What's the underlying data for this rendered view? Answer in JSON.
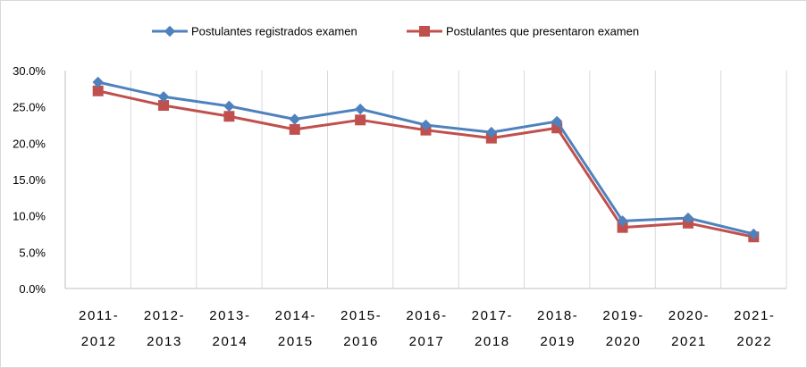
{
  "chart_data": {
    "type": "line",
    "title": "",
    "xlabel": "",
    "ylabel": "",
    "categories": [
      [
        "2011-",
        "2012"
      ],
      [
        "2012-",
        "2013"
      ],
      [
        "2013-",
        "2014"
      ],
      [
        "2014-",
        "2015"
      ],
      [
        "2015-",
        "2016"
      ],
      [
        "2016-",
        "2017"
      ],
      [
        "2017-",
        "2018"
      ],
      [
        "2018-",
        "2019"
      ],
      [
        "2019-",
        "2020"
      ],
      [
        "2020-",
        "2021"
      ],
      [
        "2021-",
        "2022"
      ]
    ],
    "series": [
      {
        "name": "Postulantes registrados examen",
        "color": "#4F81BD",
        "marker": "diamond",
        "values": [
          28.4,
          26.4,
          25.1,
          23.3,
          24.7,
          22.5,
          21.5,
          23.0,
          9.3,
          9.7,
          7.5
        ]
      },
      {
        "name": "Postulantes que presentaron examen",
        "color": "#C0504D",
        "marker": "square",
        "values": [
          27.2,
          25.2,
          23.7,
          21.9,
          23.2,
          21.8,
          20.7,
          22.1,
          8.4,
          9.0,
          7.1
        ]
      }
    ],
    "ylim": [
      0,
      30
    ],
    "yticks": [
      "0.0%",
      "5.0%",
      "10.0%",
      "15.0%",
      "20.0%",
      "25.0%",
      "30.0%"
    ],
    "ytick_values": [
      0,
      5,
      10,
      15,
      20,
      25,
      30
    ],
    "grid": "vertical",
    "legend": "top-center"
  }
}
